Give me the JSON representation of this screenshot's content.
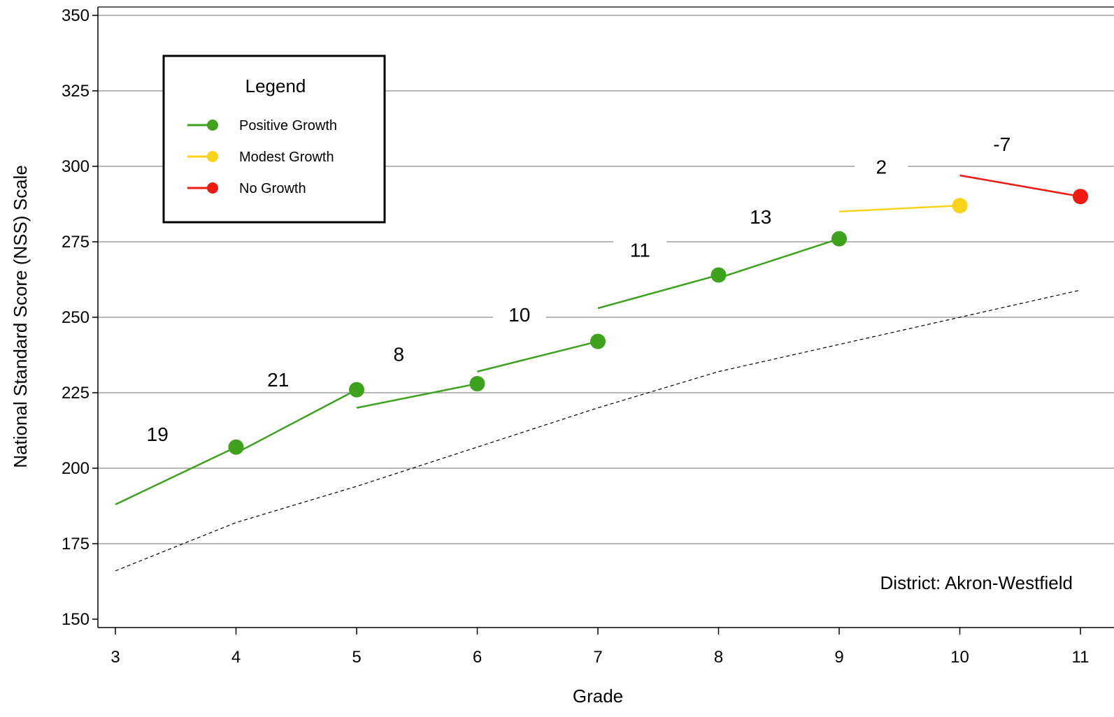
{
  "chart_data": {
    "type": "line",
    "xlabel": "Grade",
    "ylabel": "National Standard Score (NSS) Scale",
    "xlim": [
      3,
      11
    ],
    "ylim": [
      150,
      350
    ],
    "x_ticks": [
      3,
      4,
      5,
      6,
      7,
      8,
      9,
      10,
      11
    ],
    "y_ticks": [
      150,
      175,
      200,
      225,
      250,
      275,
      300,
      325,
      350
    ],
    "grid": "horizontal",
    "legend": {
      "title": "Legend",
      "position": "top-left",
      "entries": [
        {
          "label": "Positive Growth",
          "color": "#3ea21e"
        },
        {
          "label": "Modest Growth",
          "color": "#f7d417"
        },
        {
          "label": "No Growth",
          "color": "#f01a10"
        }
      ]
    },
    "growth_segments": [
      {
        "x": [
          3,
          4
        ],
        "y": [
          188,
          207
        ],
        "growth": 19,
        "category": "Positive Growth",
        "color": "#3ea21e"
      },
      {
        "x": [
          4,
          5
        ],
        "y": [
          205,
          226
        ],
        "growth": 21,
        "category": "Positive Growth",
        "color": "#3ea21e"
      },
      {
        "x": [
          5,
          6
        ],
        "y": [
          220,
          228
        ],
        "growth": 8,
        "category": "Positive Growth",
        "color": "#3ea21e"
      },
      {
        "x": [
          6,
          7
        ],
        "y": [
          232,
          242
        ],
        "growth": 10,
        "category": "Positive Growth",
        "color": "#3ea21e"
      },
      {
        "x": [
          7,
          8
        ],
        "y": [
          253,
          264
        ],
        "growth": 11,
        "category": "Positive Growth",
        "color": "#3ea21e"
      },
      {
        "x": [
          8,
          9
        ],
        "y": [
          263,
          276
        ],
        "growth": 13,
        "category": "Positive Growth",
        "color": "#3ea21e"
      },
      {
        "x": [
          9,
          10
        ],
        "y": [
          285,
          287
        ],
        "growth": 2,
        "category": "Modest Growth",
        "color": "#f7d417"
      },
      {
        "x": [
          10,
          11
        ],
        "y": [
          297,
          290
        ],
        "growth": -7,
        "category": "No Growth",
        "color": "#f01a10"
      }
    ],
    "reference_line": {
      "style": "dashed",
      "x": [
        3,
        4,
        5,
        6,
        7,
        8,
        9,
        10,
        11
      ],
      "y": [
        166,
        182,
        194,
        207,
        220,
        232,
        241,
        250,
        259
      ]
    },
    "annotation": "District: Akron-Westfield"
  }
}
